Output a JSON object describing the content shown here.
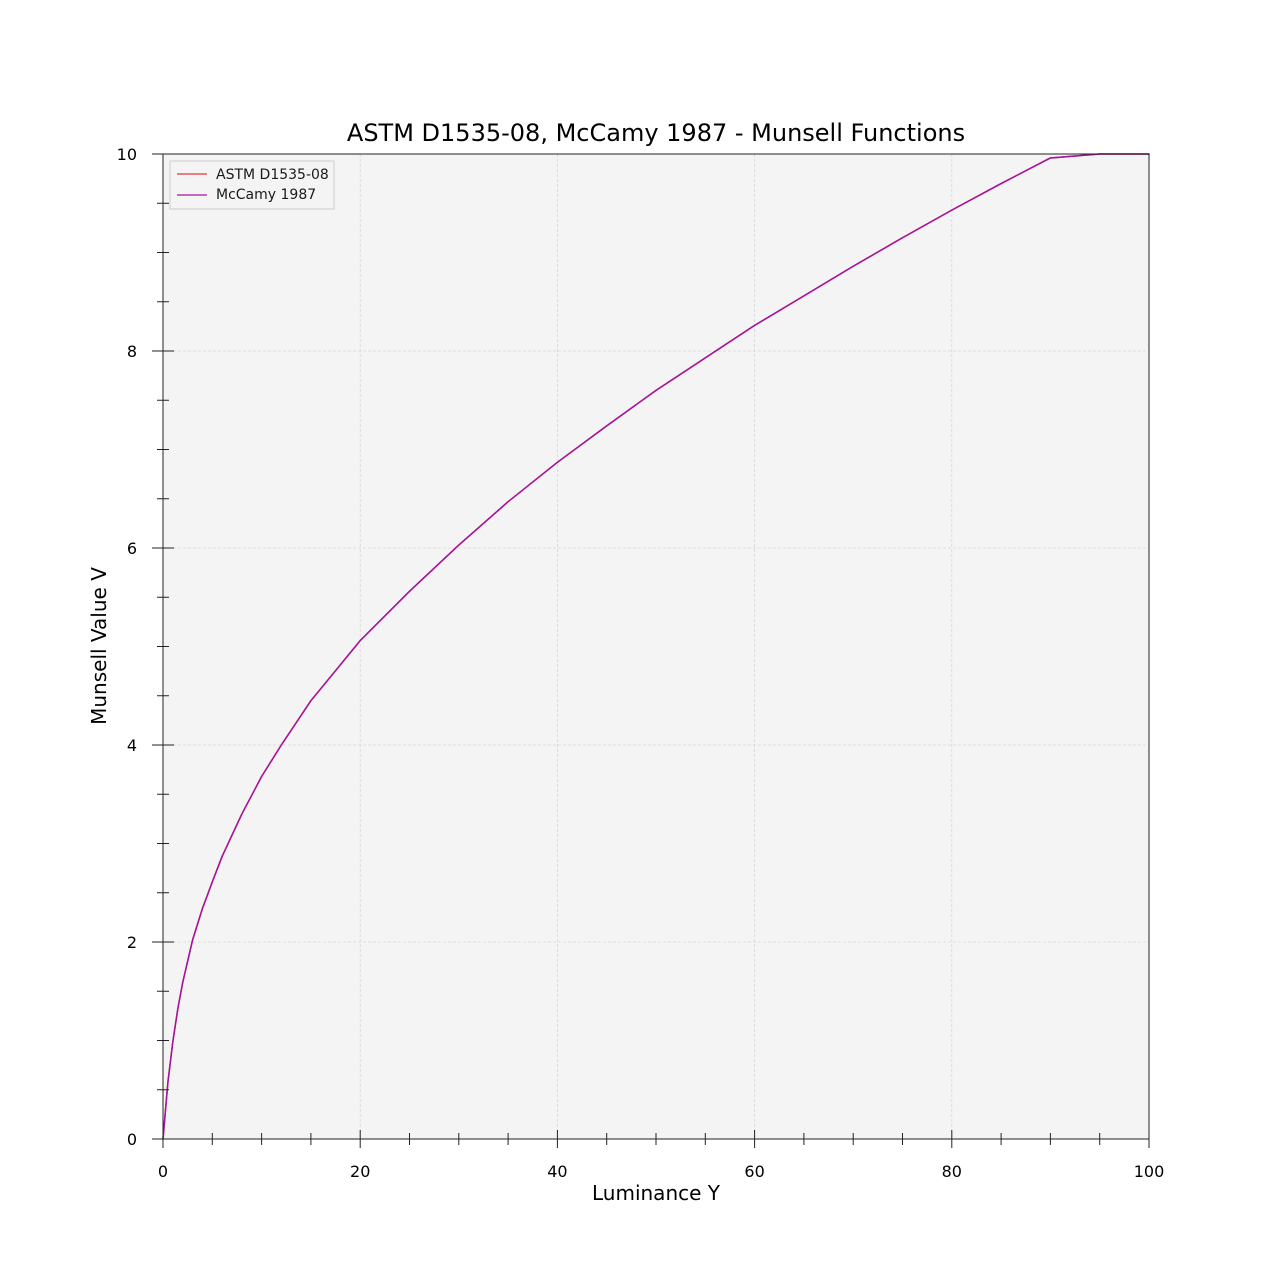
{
  "chart_data": {
    "type": "line",
    "title": "ASTM D1535-08, McCamy 1987 - Munsell Functions",
    "xlabel": "Luminance Y",
    "ylabel": "Munsell Value V",
    "xlim": [
      0,
      100
    ],
    "ylim": [
      0,
      10
    ],
    "x_ticks": [
      0,
      20,
      40,
      60,
      80,
      100
    ],
    "x_tick_labels": [
      "0",
      "20",
      "40",
      "60",
      "80",
      "100"
    ],
    "y_ticks": [
      0,
      2,
      4,
      6,
      8,
      10
    ],
    "y_tick_labels": [
      "0",
      "2",
      "4",
      "6",
      "8",
      "10"
    ],
    "grid": true,
    "legend_position": "top-left",
    "background_color": "#f4f4f4",
    "x": [
      0,
      0.5,
      1,
      1.5,
      2,
      3,
      4,
      5,
      6,
      8,
      10,
      12,
      15,
      20,
      25,
      30,
      35,
      40,
      45,
      50,
      55,
      60,
      65,
      70,
      75,
      80,
      85,
      90,
      95,
      100
    ],
    "series": [
      {
        "name": "ASTM D1535-08",
        "color": "#e8383d",
        "values": [
          0,
          0.58,
          0.99,
          1.32,
          1.59,
          2.02,
          2.34,
          2.61,
          2.87,
          3.3,
          3.68,
          4.0,
          4.45,
          5.06,
          5.56,
          6.03,
          6.47,
          6.87,
          7.24,
          7.6,
          7.93,
          8.26,
          8.56,
          8.86,
          9.15,
          9.43,
          9.7,
          9.96,
          10.2,
          10.0
        ]
      },
      {
        "name": "McCamy 1987",
        "color": "#a3139f",
        "values": [
          0,
          0.58,
          0.99,
          1.32,
          1.59,
          2.02,
          2.34,
          2.61,
          2.87,
          3.3,
          3.68,
          4.0,
          4.45,
          5.06,
          5.56,
          6.03,
          6.47,
          6.87,
          7.24,
          7.6,
          7.93,
          8.26,
          8.56,
          8.86,
          9.15,
          9.43,
          9.7,
          9.96,
          10.2,
          10.0
        ]
      }
    ]
  }
}
